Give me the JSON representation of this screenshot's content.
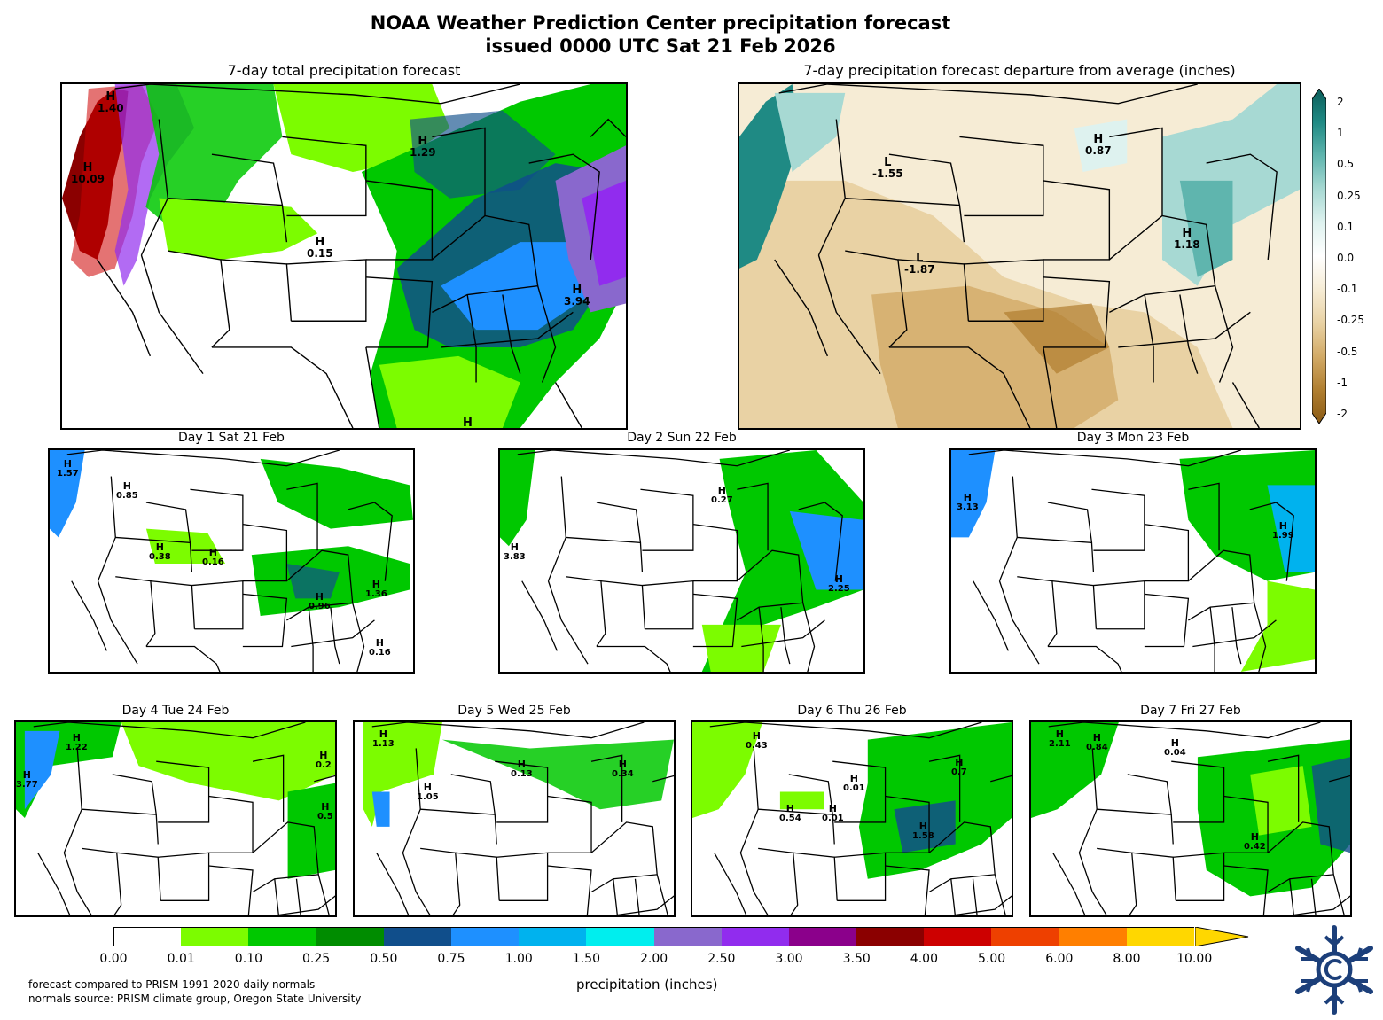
{
  "title": {
    "line1": "NOAA Weather Prediction Center precipitation forecast",
    "line2": "issued 0000 UTC Sat 21 Feb 2026"
  },
  "panels": {
    "total": {
      "title": "7-day total precipitation forecast",
      "markers": [
        {
          "kind": "H",
          "value": "1.40"
        },
        {
          "kind": "H",
          "value": "10.09"
        },
        {
          "kind": "H",
          "value": "1.29"
        },
        {
          "kind": "H",
          "value": "0.15"
        },
        {
          "kind": "H",
          "value": "3.94"
        },
        {
          "kind": "H",
          "value": ""
        }
      ]
    },
    "departure": {
      "title": "7-day precipitation forecast departure from average (inches)",
      "markers": [
        {
          "kind": "L",
          "value": "-1.55"
        },
        {
          "kind": "H",
          "value": "0.87"
        },
        {
          "kind": "L",
          "value": "-1.87"
        },
        {
          "kind": "H",
          "value": "1.18"
        }
      ],
      "colorbar": {
        "ticks": [
          "2",
          "1",
          "0.5",
          "0.25",
          "0.1",
          "0.0",
          "-0.1",
          "-0.25",
          "-0.5",
          "-1",
          "-2"
        ],
        "colors": [
          "#0b5d5a",
          "#1f8a84",
          "#5fb5ae",
          "#a7d9d3",
          "#def2ef",
          "#ffffff",
          "#f6ecd5",
          "#e9d2a4",
          "#d2aa66",
          "#b07e2f",
          "#8a5a14"
        ]
      }
    },
    "days": [
      {
        "title": "Day 1  Sat 21 Feb",
        "markers": [
          {
            "kind": "H",
            "value": "1.57"
          },
          {
            "kind": "H",
            "value": "0.85"
          },
          {
            "kind": "H",
            "value": "0.38"
          },
          {
            "kind": "H",
            "value": "0.16"
          },
          {
            "kind": "H",
            "value": "0.96"
          },
          {
            "kind": "H",
            "value": "1.36"
          },
          {
            "kind": "H",
            "value": "0.16"
          }
        ]
      },
      {
        "title": "Day 2  Sun 22 Feb",
        "markers": [
          {
            "kind": "H",
            "value": "3.83"
          },
          {
            "kind": "H",
            "value": "0.27"
          },
          {
            "kind": "H",
            "value": "2.25"
          }
        ]
      },
      {
        "title": "Day 3  Mon 23 Feb",
        "markers": [
          {
            "kind": "H",
            "value": "3.13"
          },
          {
            "kind": "H",
            "value": "1.99"
          }
        ]
      },
      {
        "title": "Day 4  Tue 24 Feb",
        "markers": [
          {
            "kind": "H",
            "value": "1.22"
          },
          {
            "kind": "H",
            "value": "3.77"
          },
          {
            "kind": "H",
            "value": "0.2"
          },
          {
            "kind": "H",
            "value": "0.5"
          }
        ]
      },
      {
        "title": "Day 5  Wed 25 Feb",
        "markers": [
          {
            "kind": "H",
            "value": "1.13"
          },
          {
            "kind": "H",
            "value": "1.05"
          },
          {
            "kind": "H",
            "value": "0.13"
          },
          {
            "kind": "H",
            "value": "0.34"
          }
        ]
      },
      {
        "title": "Day 6  Thu 26 Feb",
        "markers": [
          {
            "kind": "H",
            "value": "0.43"
          },
          {
            "kind": "H",
            "value": "0.01"
          },
          {
            "kind": "H",
            "value": "0.54"
          },
          {
            "kind": "H",
            "value": "0.01"
          },
          {
            "kind": "H",
            "value": "1.58"
          },
          {
            "kind": "H",
            "value": "0.7"
          }
        ]
      },
      {
        "title": "Day 7  Fri 27 Feb",
        "markers": [
          {
            "kind": "H",
            "value": "2.11"
          },
          {
            "kind": "H",
            "value": "0.84"
          },
          {
            "kind": "H",
            "value": "0.04"
          },
          {
            "kind": "H",
            "value": "0.42"
          }
        ]
      }
    ]
  },
  "precip_colorbar": {
    "label": "precipitation (inches)",
    "ticks": [
      "0.00",
      "0.01",
      "0.10",
      "0.25",
      "0.50",
      "0.75",
      "1.00",
      "1.50",
      "2.00",
      "2.50",
      "3.00",
      "3.50",
      "4.00",
      "5.00",
      "6.00",
      "8.00",
      "10.00"
    ],
    "colors": [
      "#ffffff",
      "#7cfc00",
      "#00c800",
      "#008c00",
      "#104e8b",
      "#1e90ff",
      "#00b2ee",
      "#00eeee",
      "#8968cd",
      "#912cee",
      "#8b008b",
      "#8b0000",
      "#cd0000",
      "#ee4000",
      "#ff7f00",
      "#ffd700"
    ]
  },
  "notes": {
    "line1": "forecast compared to PRISM 1991-2020 daily normals",
    "line2": "normals source: PRISM climate group, Oregon State University"
  },
  "logo": {
    "icon": "noaa-wpc-snowflake-logo"
  }
}
